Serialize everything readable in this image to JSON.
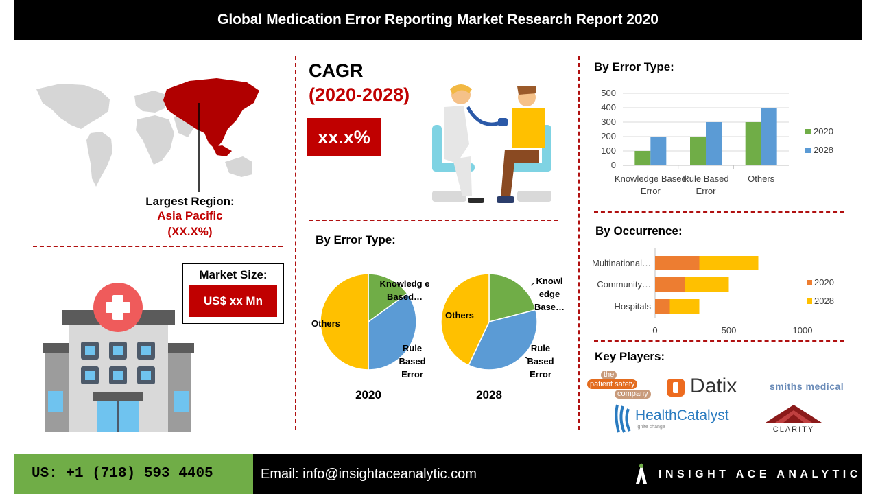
{
  "header": {
    "title": "Global Medication Error Reporting  Market Research Report 2020"
  },
  "region": {
    "label": "Largest Region:",
    "name": "Asia Pacific",
    "share": "(XX.X%)"
  },
  "market_size": {
    "label": "Market Size:",
    "value": "US$ xx Mn"
  },
  "cagr": {
    "label": "CAGR",
    "period": "(2020-2028)",
    "value": "xx.x%"
  },
  "pie_section": {
    "title": "By Error Type:",
    "labels_2020": {
      "knowledge": "Knowledg e Based…",
      "rule": "Rule Based Error",
      "others": "Others"
    },
    "labels_2028": {
      "knowledge": "Knowl edge Base…",
      "rule": "Rule Based Error",
      "others": "Others"
    }
  },
  "key_players": {
    "title": "Key Players:",
    "logos": [
      "the patient safety company",
      "Datix",
      "smiths medical",
      "HealthCatalyst",
      "ignite change",
      "CLARITY"
    ]
  },
  "footer": {
    "phone": "US: +1 (718) 593 4405",
    "email": "Email: info@insightaceanalytic.com",
    "brand": "INSIGHT ACE ANALYTIC"
  },
  "colors": {
    "accent_red": "#c00000",
    "green": "#70ad47",
    "blue": "#5b9bd5",
    "orange": "#ed7d31",
    "yellow": "#ffc000",
    "footer_green": "#70ad47"
  },
  "chart_data": [
    {
      "type": "bar",
      "title": "By Error Type:",
      "categories": [
        "Knowledge Based Error",
        "Rule Based Error",
        "Others"
      ],
      "series": [
        {
          "name": "2020",
          "values": [
            100,
            200,
            300
          ]
        },
        {
          "name": "2028",
          "values": [
            200,
            300,
            400
          ]
        }
      ],
      "ylim": [
        0,
        500
      ],
      "yticks": [
        0,
        100,
        200,
        300,
        400,
        500
      ],
      "legend": "right",
      "grid": true
    },
    {
      "type": "bar",
      "orientation": "horizontal-stacked",
      "title": "By Occurrence:",
      "categories": [
        "Multinational…",
        "Community…",
        "Hospitals"
      ],
      "series": [
        {
          "name": "2020",
          "values": [
            300,
            200,
            100
          ]
        },
        {
          "name": "2028",
          "values": [
            400,
            300,
            200
          ]
        }
      ],
      "xlim": [
        0,
        1000
      ],
      "xticks": [
        0,
        500,
        1000
      ],
      "legend": "right",
      "grid": false
    },
    {
      "type": "pie",
      "title": "2020",
      "labels": [
        "Knowledge Based Error",
        "Rule Based Error",
        "Others"
      ],
      "values": [
        15,
        35,
        50
      ]
    },
    {
      "type": "pie",
      "title": "2028",
      "labels": [
        "Knowledge Based Error",
        "Rule Based Error",
        "Others"
      ],
      "values": [
        21,
        36,
        43
      ]
    }
  ]
}
